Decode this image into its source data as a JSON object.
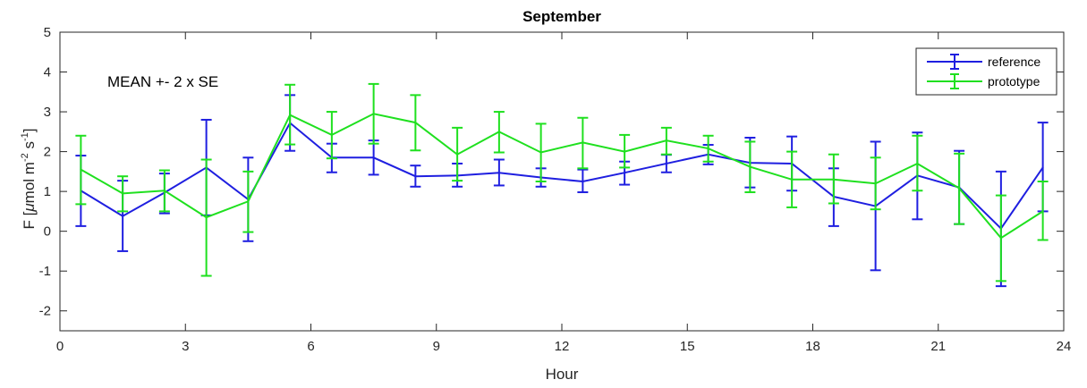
{
  "chart_data": {
    "type": "line",
    "title": "September",
    "xlabel": "Hour",
    "ylabel": "F [μmol m⁻² s⁻¹]",
    "ylabel_parts": {
      "pre": "F [",
      "mu": "μ",
      "mid1": "mol m",
      "sup1": "-2",
      "mid2": " s",
      "sup2": "-1",
      "post": "]"
    },
    "xlim": [
      0,
      24
    ],
    "ylim": [
      -2.5,
      5
    ],
    "xticks": [
      0,
      3,
      6,
      9,
      12,
      15,
      18,
      21,
      24
    ],
    "yticks": [
      -2,
      -1,
      0,
      1,
      2,
      3,
      4,
      5
    ],
    "annotation": "MEAN +- 2 x SE",
    "legend_position": "top-right",
    "grid": false,
    "x": [
      0.5,
      1.5,
      2.5,
      3.5,
      4.5,
      5.5,
      6.5,
      7.5,
      8.5,
      9.5,
      10.5,
      11.5,
      12.5,
      13.5,
      14.5,
      15.5,
      16.5,
      17.5,
      18.5,
      19.5,
      20.5,
      21.5,
      22.5,
      23.5
    ],
    "series": [
      {
        "name": "reference",
        "color": "#1f1fe0",
        "values": [
          1.02,
          0.38,
          0.97,
          1.6,
          0.8,
          2.72,
          1.85,
          1.85,
          1.38,
          1.4,
          1.47,
          1.35,
          1.25,
          1.47,
          1.7,
          1.93,
          1.72,
          1.7,
          0.87,
          0.63,
          1.4,
          1.1,
          0.07,
          1.6
        ],
        "lower": [
          0.13,
          -0.5,
          0.45,
          0.4,
          -0.25,
          2.02,
          1.48,
          1.42,
          1.12,
          1.12,
          1.15,
          1.12,
          0.98,
          1.17,
          1.48,
          1.68,
          1.1,
          1.02,
          0.13,
          -0.98,
          0.3,
          0.18,
          -1.38,
          0.5
        ],
        "upper": [
          1.9,
          1.27,
          1.45,
          2.8,
          1.85,
          3.42,
          2.2,
          2.28,
          1.65,
          1.7,
          1.8,
          1.58,
          1.55,
          1.75,
          1.92,
          2.17,
          2.35,
          2.38,
          1.58,
          2.25,
          2.48,
          2.02,
          1.5,
          2.73
        ]
      },
      {
        "name": "prototype",
        "color": "#1fe01f",
        "values": [
          1.55,
          0.95,
          1.02,
          0.35,
          0.75,
          2.92,
          2.42,
          2.95,
          2.73,
          1.93,
          2.5,
          1.98,
          2.23,
          2.0,
          2.28,
          2.08,
          1.62,
          1.3,
          1.3,
          1.2,
          1.7,
          1.08,
          -0.17,
          0.5
        ],
        "lower": [
          0.68,
          0.5,
          0.5,
          -1.12,
          -0.02,
          2.18,
          1.83,
          2.2,
          2.03,
          1.27,
          1.98,
          1.25,
          1.58,
          1.6,
          1.93,
          1.75,
          0.98,
          0.6,
          0.7,
          0.55,
          1.02,
          0.18,
          -1.25,
          -0.22
        ],
        "upper": [
          2.4,
          1.38,
          1.53,
          1.8,
          1.5,
          3.68,
          3.0,
          3.7,
          3.42,
          2.6,
          3.0,
          2.7,
          2.85,
          2.42,
          2.6,
          2.4,
          2.25,
          2.0,
          1.93,
          1.85,
          2.4,
          1.95,
          0.9,
          1.25
        ]
      }
    ]
  }
}
